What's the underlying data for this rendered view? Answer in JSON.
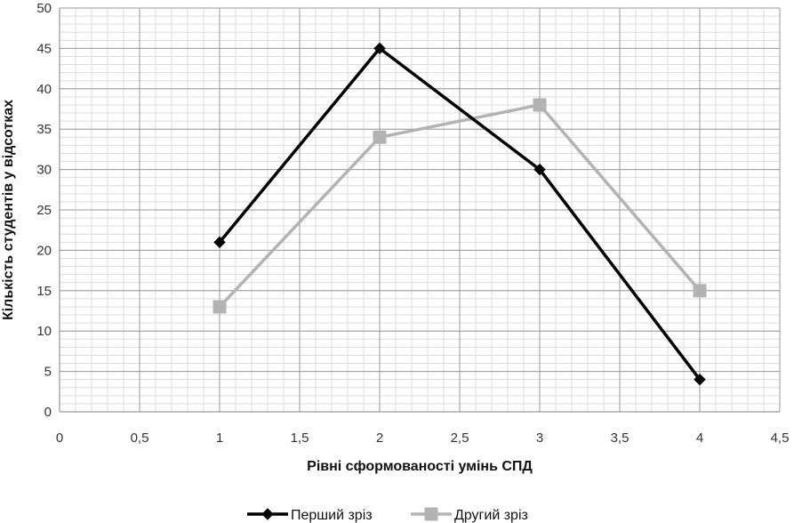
{
  "chart_data": {
    "type": "line",
    "xlabel": "Рівні сформованості умінь СПД",
    "ylabel": "Кількість студентів у відсотках",
    "xlim": [
      0,
      4.5
    ],
    "ylim": [
      0,
      50
    ],
    "x_ticks": [
      0,
      0.5,
      1,
      1.5,
      2,
      2.5,
      3,
      3.5,
      4,
      4.5
    ],
    "x_tick_labels": [
      "0",
      "0,5",
      "1",
      "1,5",
      "2",
      "2,5",
      "3",
      "3,5",
      "4",
      "4,5"
    ],
    "y_ticks": [
      0,
      5,
      10,
      15,
      20,
      25,
      30,
      35,
      40,
      45,
      50
    ],
    "y_tick_labels": [
      "0",
      "5",
      "10",
      "15",
      "20",
      "25",
      "30",
      "35",
      "40",
      "45",
      "50"
    ],
    "grid": true,
    "legend_position": "bottom",
    "series": [
      {
        "name": "Перший зріз",
        "x": [
          1,
          2,
          3,
          4
        ],
        "y": [
          21,
          45,
          30,
          4
        ],
        "color": "#000000",
        "marker": "diamond"
      },
      {
        "name": "Другий зріз",
        "x": [
          1,
          2,
          3,
          4
        ],
        "y": [
          13,
          34,
          38,
          15
        ],
        "color": "#b3b3b3",
        "marker": "square"
      }
    ]
  }
}
